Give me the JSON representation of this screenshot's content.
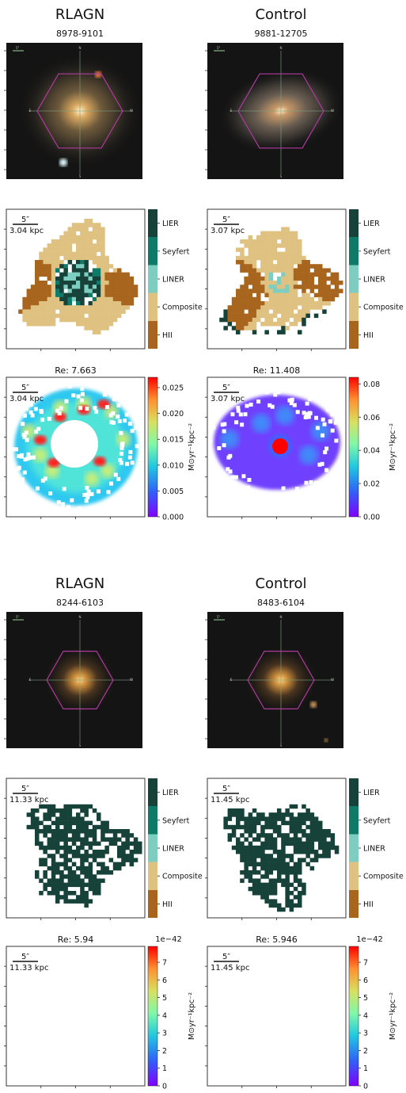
{
  "galaxies": [
    {
      "key": "top-left",
      "group_label": "RLAGN",
      "plate_ifu": "8978-9101",
      "sdss_compass": {
        "scale": "5\"",
        "n": "N",
        "e": "E",
        "w": "W",
        "s": "S"
      },
      "bpt_scale": {
        "arcsec": "5″",
        "kpc": "3.04 kpc"
      },
      "sfr_title": "Re: 7.663",
      "sfr_scale": {
        "arcsec": "5″",
        "kpc": "3.04 kpc"
      },
      "sfr_colorbar": {
        "ticks": [
          "0.000",
          "0.005",
          "0.010",
          "0.015",
          "0.020",
          "0.025"
        ],
        "multiplier": ""
      }
    },
    {
      "key": "top-right",
      "group_label": "Control",
      "plate_ifu": "9881-12705",
      "sdss_compass": {
        "scale": "5\"",
        "n": "N",
        "e": "E",
        "w": "W",
        "s": "S"
      },
      "bpt_scale": {
        "arcsec": "5″",
        "kpc": "3.07 kpc"
      },
      "sfr_title": "Re: 11.408",
      "sfr_scale": {
        "arcsec": "5″",
        "kpc": "3.07 kpc"
      },
      "sfr_colorbar": {
        "ticks": [
          "0.00",
          "0.02",
          "0.04",
          "0.06",
          "0.08"
        ],
        "multiplier": ""
      }
    },
    {
      "key": "bottom-left",
      "group_label": "RLAGN",
      "plate_ifu": "8244-6103",
      "sdss_compass": {
        "scale": "5\"",
        "n": "N",
        "e": "E",
        "w": "W",
        "s": "S"
      },
      "bpt_scale": {
        "arcsec": "5″",
        "kpc": "11.33 kpc"
      },
      "sfr_title": "Re: 5.94",
      "sfr_scale": {
        "arcsec": "5″",
        "kpc": "11.33 kpc"
      },
      "sfr_colorbar": {
        "ticks": [
          "0",
          "1",
          "2",
          "3",
          "4",
          "5",
          "6",
          "7"
        ],
        "multiplier": "1e−42"
      }
    },
    {
      "key": "bottom-right",
      "group_label": "Control",
      "plate_ifu": "8483-6104",
      "sdss_compass": {
        "scale": "5\"",
        "n": "N",
        "e": "E",
        "w": "W",
        "s": "S"
      },
      "bpt_scale": {
        "arcsec": "5″",
        "kpc": "11.45 kpc"
      },
      "sfr_title": "Re: 5.946",
      "sfr_scale": {
        "arcsec": "5″",
        "kpc": "11.45 kpc"
      },
      "sfr_colorbar": {
        "ticks": [
          "0",
          "1",
          "2",
          "3",
          "4",
          "5",
          "6",
          "7"
        ],
        "multiplier": "1e−42"
      }
    }
  ],
  "bpt_classes": [
    {
      "label": "LIER",
      "color": "#17423a"
    },
    {
      "label": "Seyfert",
      "color": "#0f7a68"
    },
    {
      "label": "LINER",
      "color": "#7ecdc1"
    },
    {
      "label": "Composite",
      "color": "#dfc281"
    },
    {
      "label": "HII",
      "color": "#a8651e"
    }
  ],
  "sfr_colorbar_label": "M⊙yr⁻¹kpc⁻²",
  "colors": {
    "hexagon": "#b03aa0",
    "crosshair": "#7fa07f",
    "sky": "#141414"
  }
}
